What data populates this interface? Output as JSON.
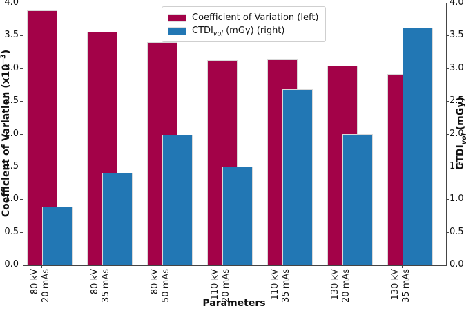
{
  "chart_data": {
    "type": "bar",
    "title": "",
    "xlabel": "Parameters",
    "ylabel_left": "Coefficient of Variation (x10⁻³)",
    "ylabel_right": "CTDI_vol (mGy)",
    "categories": [
      [
        "80 kV",
        "20 mAs"
      ],
      [
        "80 kV",
        "35 mAs"
      ],
      [
        "80 kV",
        "50 mAs"
      ],
      [
        "110 kV",
        "20 mAs"
      ],
      [
        "110 kV",
        "35 mAs"
      ],
      [
        "130 kV",
        "20 mAs"
      ],
      [
        "130 kV",
        "35 mAs"
      ]
    ],
    "series": [
      {
        "name": "Coefficient of Variation (left)",
        "axis": "left",
        "color": "#a30248",
        "values": [
          3.89,
          3.57,
          3.41,
          3.14,
          3.15,
          3.05,
          2.92
        ]
      },
      {
        "name": "CTDI_vol (mGy) (right)",
        "axis": "right",
        "color": "#2277b4",
        "values": [
          0.9,
          1.41,
          2.0,
          1.51,
          2.69,
          2.01,
          3.63
        ]
      }
    ],
    "ylim_left": [
      0.0,
      4.0
    ],
    "ylim_right": [
      0.0,
      4.0
    ],
    "yticks": [
      0.0,
      0.5,
      1.0,
      1.5,
      2.0,
      2.5,
      3.0,
      3.5,
      4.0
    ],
    "grid": false,
    "legend_position": "upper center",
    "bar_layout": "overlapping-offset"
  },
  "axes": {
    "left_label_prefix": "Coefficient of Variation (x10",
    "left_label_sup": "−3",
    "left_label_suffix": ")",
    "right_label_prefix": "CTDI",
    "right_label_sub": "vol",
    "right_label_suffix": " (mGy)"
  },
  "legend": {
    "items": [
      {
        "label": "Coefficient of Variation (left)",
        "color": "#a30248"
      },
      {
        "prefix": "CTDI",
        "sub": "vol",
        "suffix": " (mGy) (right)",
        "color": "#2277b4"
      }
    ]
  }
}
